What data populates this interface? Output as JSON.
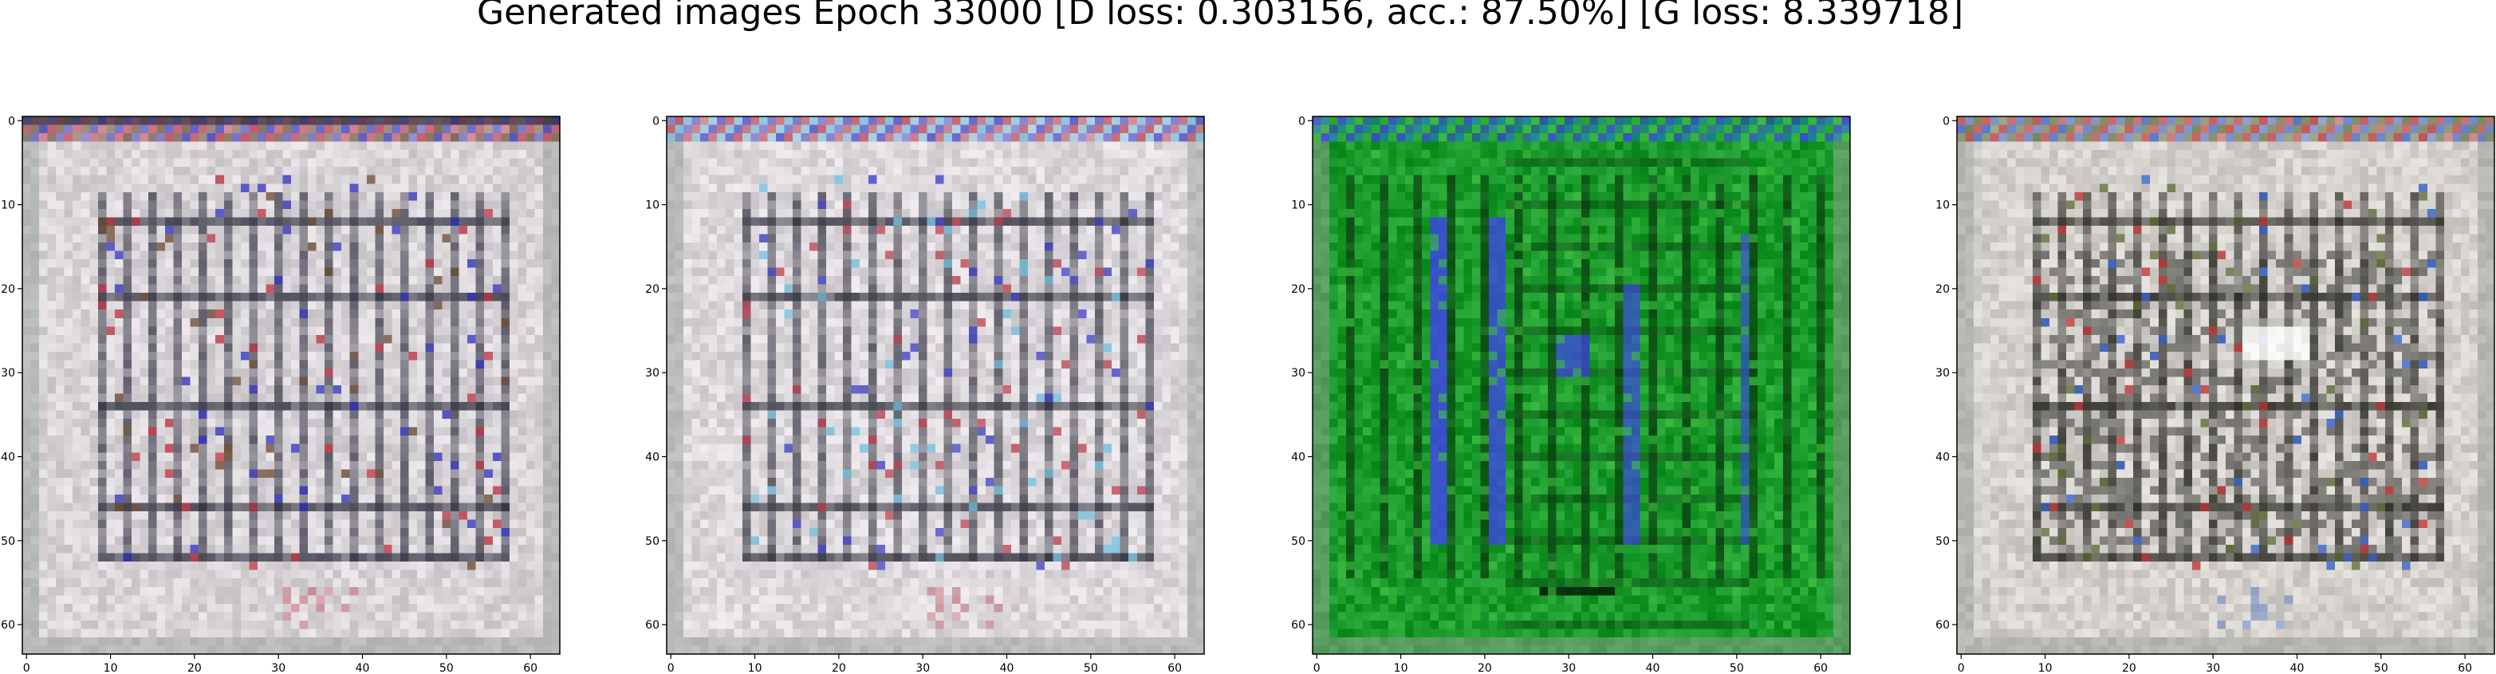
{
  "figure": {
    "title": "Generated images Epoch 33000 [D loss: 0.303156, acc.: 87.50%] [G loss: 8.339718]"
  },
  "chart_data": [
    {
      "type": "heatmap",
      "panel": "generated-image-1",
      "style": "sketch",
      "base_color": "#d8d4d8",
      "line_color": "#2c2c3c",
      "accent_colors": [
        "#3030c0",
        "#c03040",
        "#6a4a30"
      ],
      "x_ticks": [
        0,
        10,
        20,
        30,
        40,
        50,
        60
      ],
      "y_ticks": [
        0,
        10,
        20,
        30,
        40,
        50,
        60
      ],
      "xlim": [
        -0.5,
        63.5
      ],
      "ylim": [
        63.5,
        -0.5
      ],
      "grid": false
    },
    {
      "type": "heatmap",
      "panel": "generated-image-2",
      "style": "sketch",
      "base_color": "#dcd8dc",
      "line_color": "#30303c",
      "accent_colors": [
        "#4040c8",
        "#c04050",
        "#70c0e0"
      ],
      "x_ticks": [
        0,
        10,
        20,
        30,
        40,
        50,
        60
      ],
      "y_ticks": [
        0,
        10,
        20,
        30,
        40,
        50,
        60
      ],
      "xlim": [
        -0.5,
        63.5
      ],
      "ylim": [
        63.5,
        -0.5
      ],
      "grid": false
    },
    {
      "type": "heatmap",
      "panel": "generated-image-3",
      "style": "green",
      "base_color": "#1a9a2a",
      "line_color": "#0a3a10",
      "accent_colors": [
        "#4040f0",
        "#2080c0",
        "#40c040"
      ],
      "x_ticks": [
        0,
        10,
        20,
        30,
        40,
        50,
        60
      ],
      "y_ticks": [
        0,
        10,
        20,
        30,
        40,
        50,
        60
      ],
      "xlim": [
        -0.5,
        63.5
      ],
      "ylim": [
        63.5,
        -0.5
      ],
      "grid": false
    },
    {
      "type": "heatmap",
      "panel": "generated-image-4",
      "style": "dense",
      "base_color": "#d4d0cc",
      "line_color": "#2a2a22",
      "accent_colors": [
        "#c03030",
        "#3060d0",
        "#5a6a30"
      ],
      "x_ticks": [
        0,
        10,
        20,
        30,
        40,
        50,
        60
      ],
      "y_ticks": [
        0,
        10,
        20,
        30,
        40,
        50,
        60
      ],
      "xlim": [
        -0.5,
        63.5
      ],
      "ylim": [
        63.5,
        -0.5
      ],
      "grid": false
    }
  ]
}
